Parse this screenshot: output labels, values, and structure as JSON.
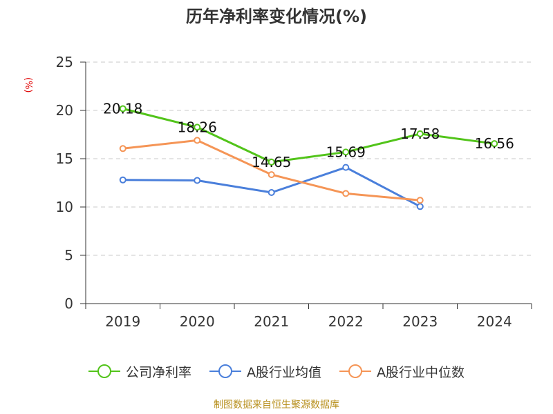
{
  "title": "历年净利率变化情况(%)",
  "unit_label": "(%)",
  "source": "制图数据来自恒生聚源数据库",
  "chart_data": {
    "type": "line",
    "title": "历年净利率变化情况(%)",
    "ylabel": "(%)",
    "categories": [
      "2019",
      "2020",
      "2021",
      "2022",
      "2023",
      "2024"
    ],
    "ylim": [
      0,
      25
    ],
    "yticks": [
      0,
      5,
      10,
      15,
      20,
      25
    ],
    "grid": "horizontal dashed",
    "legend_position": "bottom",
    "series": [
      {
        "name": "公司净利率",
        "color": "#52c41a",
        "values": [
          20.18,
          18.26,
          14.65,
          15.69,
          17.58,
          16.56
        ],
        "labels": [
          "20.18",
          "18.26",
          "14.65",
          "15.69",
          "17.58",
          "16.56"
        ]
      },
      {
        "name": "A股行业均值",
        "color": "#4a7fdb",
        "values": [
          12.8,
          12.75,
          11.5,
          14.1,
          10.05,
          null
        ]
      },
      {
        "name": "A股行业中位数",
        "color": "#f59556",
        "values": [
          16.05,
          16.9,
          13.35,
          11.4,
          10.7,
          null
        ]
      }
    ]
  }
}
